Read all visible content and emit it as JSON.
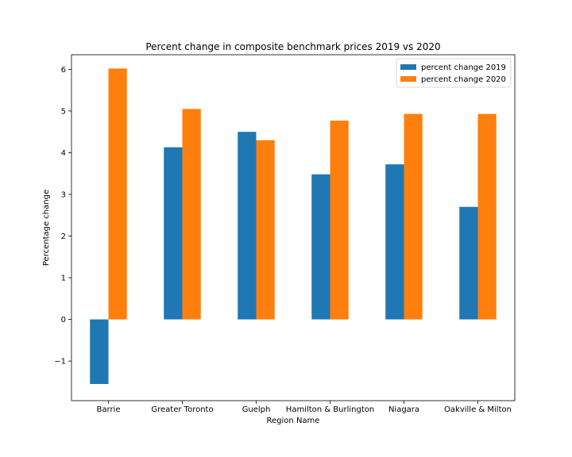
{
  "chart_data": {
    "type": "bar",
    "title": "Percent change in composite benchmark prices 2019 vs 2020",
    "xlabel": "Region Name",
    "ylabel": "Percentage change",
    "categories": [
      "Barrie",
      "Greater Toronto",
      "Guelph",
      "Hamilton & Burlington",
      "Niagara",
      "Oakville & Milton"
    ],
    "series": [
      {
        "name": "percent change 2019",
        "values": [
          -1.55,
          4.13,
          4.5,
          3.48,
          3.72,
          2.7
        ],
        "color": "#1f77b4"
      },
      {
        "name": "percent change 2020",
        "values": [
          6.02,
          5.05,
          4.3,
          4.77,
          4.93,
          4.93
        ],
        "color": "#ff7f0e"
      }
    ],
    "ylim": [
      -1.95,
      6.35
    ],
    "yticks": [
      -1,
      0,
      1,
      2,
      3,
      4,
      5,
      6
    ],
    "ytick_labels": [
      "−1",
      "0",
      "1",
      "2",
      "3",
      "4",
      "5",
      "6"
    ],
    "grid": false,
    "legend_position": "top-right"
  }
}
